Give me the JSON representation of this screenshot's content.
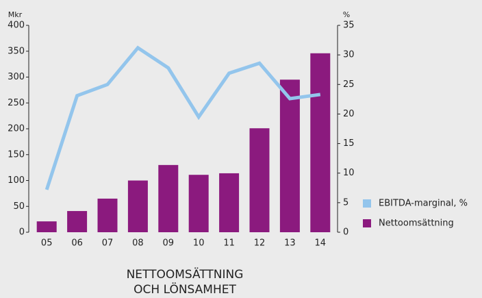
{
  "chart_data": {
    "type": "bar_line",
    "title": [
      "NETTOOMSÄTTNING",
      "OCH LÖNSAMHET"
    ],
    "y_label": "Mkr",
    "y2_label": "%",
    "categories": [
      "05",
      "06",
      "07",
      "08",
      "09",
      "10",
      "11",
      "12",
      "13",
      "14"
    ],
    "series": [
      {
        "name": "EBITDA-marginal, %",
        "type": "line",
        "axis": "y2",
        "color": "#93c5ec",
        "values": [
          7.2,
          23.1,
          25.0,
          31.2,
          27.8,
          19.5,
          26.9,
          28.6,
          22.6,
          23.3
        ]
      },
      {
        "name": "Nettoomsättning",
        "type": "bar",
        "axis": "y",
        "color": "#8b1a7e",
        "values": [
          21,
          41,
          65,
          100,
          130,
          111,
          114,
          201,
          295,
          346
        ]
      }
    ],
    "ylim": [
      0,
      400
    ],
    "yticks": [
      0,
      50,
      100,
      150,
      200,
      250,
      300,
      350,
      400
    ],
    "y2lim": [
      0,
      35
    ],
    "y2ticks": [
      0,
      5,
      10,
      15,
      20,
      25,
      30,
      35
    ],
    "grid": false
  }
}
